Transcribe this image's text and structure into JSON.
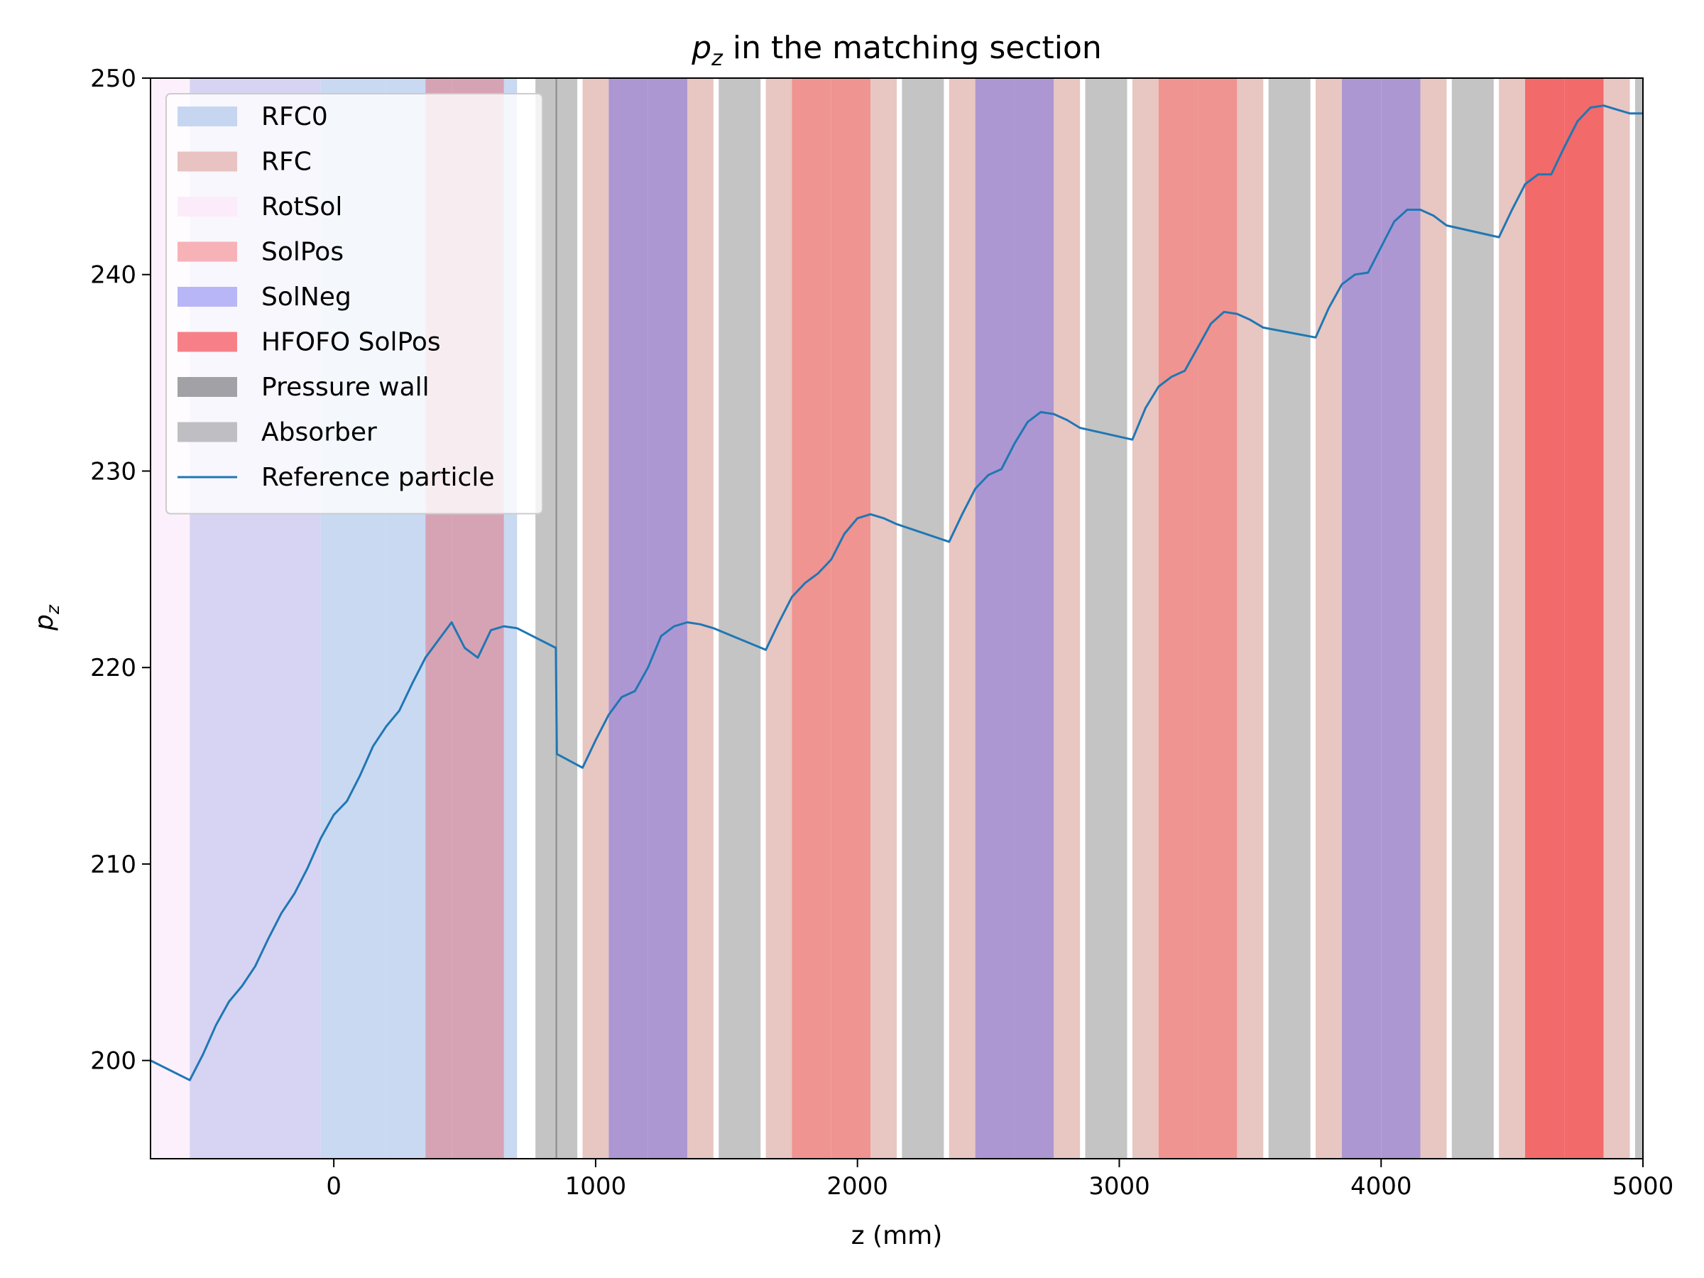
{
  "chart_data": {
    "type": "line",
    "title": "p_z in the matching section",
    "title_parts": {
      "symbol": "p",
      "subscript": "z",
      "rest": " in the matching section"
    },
    "xlabel": "z (mm)",
    "ylabel_parts": {
      "symbol": "p",
      "subscript": "z"
    },
    "xlim": [
      -700,
      5000
    ],
    "ylim": [
      195,
      250
    ],
    "xticks": [
      0,
      1000,
      2000,
      3000,
      4000,
      5000
    ],
    "yticks": [
      200,
      210,
      220,
      230,
      240,
      250
    ],
    "grid": false,
    "legend_position": "upper-left",
    "legend": [
      {
        "label": "RFC0",
        "kind": "patch",
        "color": "#c6d6f1"
      },
      {
        "label": "RFC",
        "kind": "patch",
        "color": "#e8c3c1"
      },
      {
        "label": "RotSol",
        "kind": "patch",
        "color": "#fcecfa"
      },
      {
        "label": "SolPos",
        "kind": "patch",
        "color": "#f7b2b8"
      },
      {
        "label": "SolNeg",
        "kind": "patch",
        "color": "#b8b6f6"
      },
      {
        "label": "HFOFO SolPos",
        "kind": "patch",
        "color": "#f78088"
      },
      {
        "label": "Pressure wall",
        "kind": "patch",
        "color": "#a2a2a6"
      },
      {
        "label": "Absorber",
        "kind": "patch",
        "color": "#bfbfc3"
      },
      {
        "label": "Reference particle",
        "kind": "line",
        "color": "#1f77b4"
      }
    ],
    "regions": [
      {
        "x0": -700,
        "x1": -550,
        "color": "#fcf0fc"
      },
      {
        "x0": -550,
        "x1": -300,
        "color": "#d6d4f2"
      },
      {
        "x0": -300,
        "x1": -50,
        "color": "#d6d4f2"
      },
      {
        "x0": -50,
        "x1": 200,
        "color": "#c9d9f2"
      },
      {
        "x0": 200,
        "x1": 350,
        "color": "#c9d9f2"
      },
      {
        "x0": 350,
        "x1": 450,
        "color": "#d6a3b4"
      },
      {
        "x0": 450,
        "x1": 650,
        "color": "#d6a3b4"
      },
      {
        "x0": 650,
        "x1": 700,
        "color": "#c9d9f2"
      },
      {
        "x0": 770,
        "x1": 850,
        "color": "#c4c4c4"
      },
      {
        "x0": 850,
        "x1": 930,
        "color": "#c4c4c4"
      },
      {
        "x0": 950,
        "x1": 1050,
        "color": "#e8c6c2"
      },
      {
        "x0": 1050,
        "x1": 1200,
        "color": "#ac97d2"
      },
      {
        "x0": 1200,
        "x1": 1350,
        "color": "#ac97d2"
      },
      {
        "x0": 1350,
        "x1": 1450,
        "color": "#e8c6c2"
      },
      {
        "x0": 1470,
        "x1": 1630,
        "color": "#c4c4c4"
      },
      {
        "x0": 1650,
        "x1": 1750,
        "color": "#e8c6c2"
      },
      {
        "x0": 1750,
        "x1": 1900,
        "color": "#ef9490"
      },
      {
        "x0": 1900,
        "x1": 2050,
        "color": "#ef9490"
      },
      {
        "x0": 2050,
        "x1": 2150,
        "color": "#e8c6c2"
      },
      {
        "x0": 2170,
        "x1": 2330,
        "color": "#c4c4c4"
      },
      {
        "x0": 2350,
        "x1": 2450,
        "color": "#e8c6c2"
      },
      {
        "x0": 2450,
        "x1": 2600,
        "color": "#ac97d2"
      },
      {
        "x0": 2600,
        "x1": 2750,
        "color": "#ac97d2"
      },
      {
        "x0": 2750,
        "x1": 2850,
        "color": "#e8c6c2"
      },
      {
        "x0": 2870,
        "x1": 3030,
        "color": "#c4c4c4"
      },
      {
        "x0": 3050,
        "x1": 3150,
        "color": "#e8c6c2"
      },
      {
        "x0": 3150,
        "x1": 3300,
        "color": "#ef9490"
      },
      {
        "x0": 3300,
        "x1": 3450,
        "color": "#ef9490"
      },
      {
        "x0": 3450,
        "x1": 3550,
        "color": "#e8c6c2"
      },
      {
        "x0": 3570,
        "x1": 3730,
        "color": "#c4c4c4"
      },
      {
        "x0": 3750,
        "x1": 3850,
        "color": "#e8c6c2"
      },
      {
        "x0": 3850,
        "x1": 4000,
        "color": "#ac97d2"
      },
      {
        "x0": 4000,
        "x1": 4150,
        "color": "#ac97d2"
      },
      {
        "x0": 4150,
        "x1": 4250,
        "color": "#e8c6c2"
      },
      {
        "x0": 4270,
        "x1": 4430,
        "color": "#c4c4c4"
      },
      {
        "x0": 4450,
        "x1": 4550,
        "color": "#e8c6c2"
      },
      {
        "x0": 4550,
        "x1": 4700,
        "color": "#f26a6a"
      },
      {
        "x0": 4700,
        "x1": 4850,
        "color": "#f26a6a"
      },
      {
        "x0": 4850,
        "x1": 4950,
        "color": "#e8c6c2"
      },
      {
        "x0": 4970,
        "x1": 5000,
        "color": "#c4c4c4"
      }
    ],
    "pressure_wall_lines": [
      {
        "x": 850,
        "color": "#8a8a8a"
      }
    ],
    "series": [
      {
        "name": "Reference particle",
        "color": "#1f77b4",
        "x": [
          -700,
          -550,
          -500,
          -450,
          -400,
          -350,
          -300,
          -250,
          -200,
          -150,
          -100,
          -50,
          0,
          50,
          100,
          150,
          200,
          250,
          300,
          350,
          400,
          450,
          500,
          550,
          600,
          650,
          700,
          848,
          852,
          950,
          1000,
          1050,
          1100,
          1150,
          1200,
          1250,
          1300,
          1350,
          1400,
          1450,
          1650,
          1700,
          1750,
          1800,
          1850,
          1900,
          1950,
          2000,
          2050,
          2100,
          2150,
          2350,
          2400,
          2450,
          2500,
          2550,
          2600,
          2650,
          2700,
          2750,
          2800,
          2850,
          3050,
          3100,
          3150,
          3200,
          3250,
          3300,
          3350,
          3400,
          3450,
          3500,
          3550,
          3750,
          3800,
          3850,
          3900,
          3950,
          4000,
          4050,
          4100,
          4150,
          4200,
          4250,
          4450,
          4500,
          4550,
          4600,
          4650,
          4700,
          4750,
          4800,
          4850,
          4900,
          4950,
          5000
        ],
        "values": [
          200.0,
          199.0,
          200.3,
          201.8,
          203.0,
          203.8,
          204.8,
          206.2,
          207.5,
          208.5,
          209.8,
          211.3,
          212.5,
          213.2,
          214.5,
          216.0,
          217.0,
          217.8,
          219.2,
          220.5,
          221.4,
          222.3,
          221.0,
          220.5,
          221.9,
          222.1,
          222.0,
          221.0,
          215.6,
          214.9,
          216.3,
          217.6,
          218.5,
          218.8,
          220.0,
          221.6,
          222.1,
          222.3,
          222.2,
          222.0,
          220.9,
          222.3,
          223.6,
          224.3,
          224.8,
          225.5,
          226.8,
          227.6,
          227.8,
          227.6,
          227.3,
          226.4,
          227.8,
          229.1,
          229.8,
          230.1,
          231.4,
          232.5,
          233.0,
          232.9,
          232.6,
          232.2,
          231.6,
          233.2,
          234.3,
          234.8,
          235.1,
          236.3,
          237.5,
          238.1,
          238.0,
          237.7,
          237.3,
          236.8,
          238.3,
          239.5,
          240.0,
          240.1,
          241.4,
          242.7,
          243.3,
          243.3,
          243.0,
          242.5,
          241.9,
          243.3,
          244.6,
          245.1,
          245.1,
          246.5,
          247.8,
          248.5,
          248.6,
          248.4,
          248.2,
          248.2
        ]
      }
    ]
  }
}
